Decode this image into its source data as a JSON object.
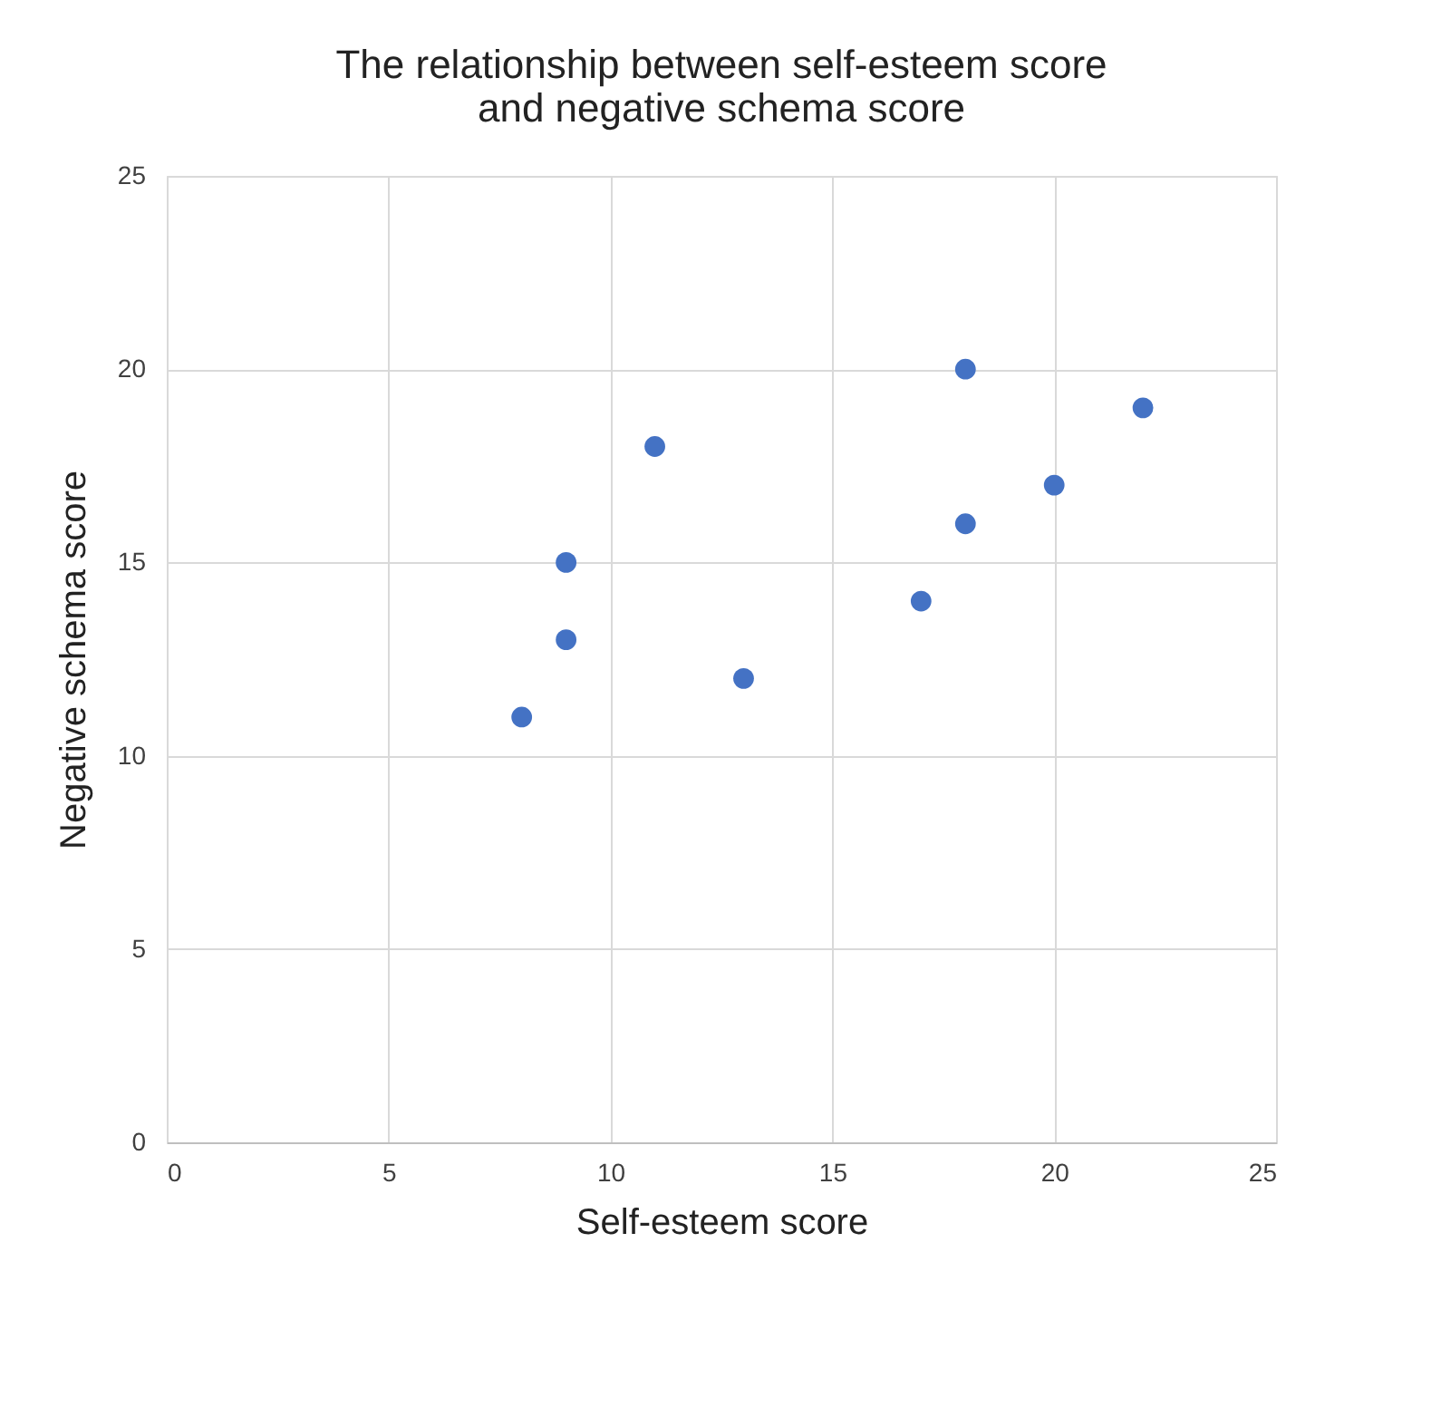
{
  "chart_data": {
    "type": "scatter",
    "title": [
      "The relationship between self-esteem score",
      "and negative schema score"
    ],
    "xlabel": "Self-esteem score",
    "ylabel": "Negative schema score",
    "x": [
      8,
      9,
      9,
      11,
      13,
      17,
      18,
      18,
      20,
      22
    ],
    "series": [
      {
        "color": "#4472c4",
        "values": [
          11,
          13,
          15,
          18,
          12,
          14,
          16,
          20,
          17,
          19
        ]
      }
    ],
    "xlim": [
      0,
      25
    ],
    "xticks": [
      0,
      5,
      10,
      15,
      20,
      25
    ],
    "ylim": [
      0,
      25
    ],
    "yticks": [
      0,
      5,
      10,
      15,
      20,
      25
    ],
    "grid": true,
    "marker": "circle",
    "legend": false
  }
}
